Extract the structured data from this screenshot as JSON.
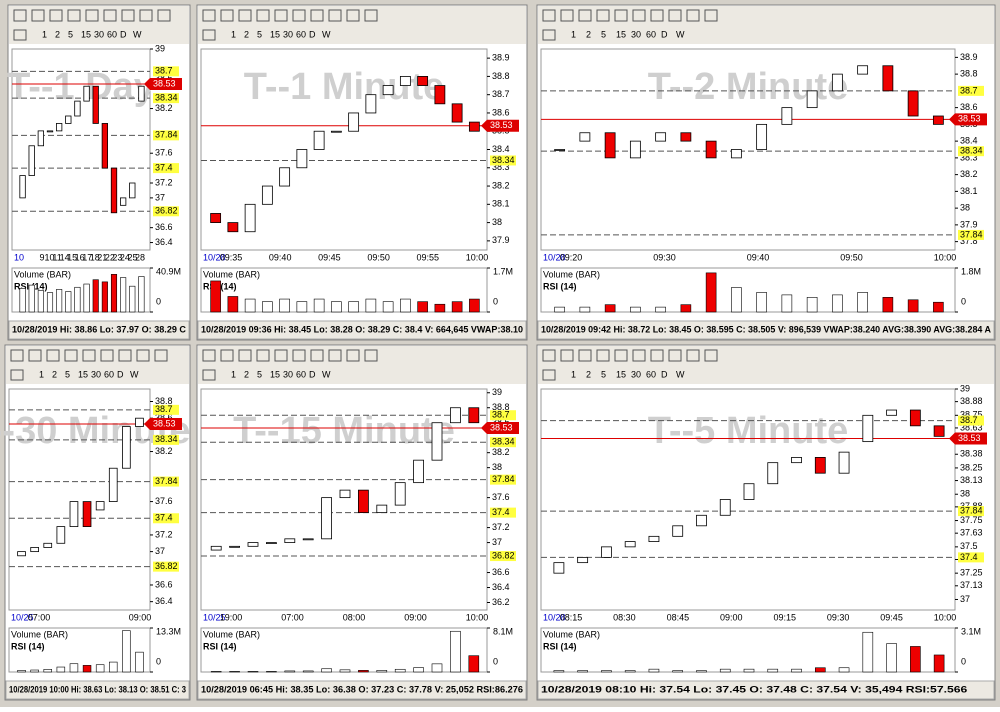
{
  "panels": [
    {
      "watermark": "T--1 Day",
      "intervals": [
        "1",
        "2",
        "5",
        "15",
        "30",
        "60",
        "D",
        "W"
      ],
      "ylim": [
        36.3,
        39.0
      ],
      "yticks": [
        39,
        38.6,
        38.2,
        37.6,
        37.2,
        37,
        36.6,
        36.4
      ],
      "levels": [
        38.7,
        38.34,
        37.84,
        37.4,
        36.82
      ],
      "last_price": 38.53,
      "x_labels": [
        "9",
        "10",
        "11",
        "14",
        "15",
        "16",
        "17",
        "18",
        "21",
        "22",
        "23",
        "24",
        "25",
        "28"
      ],
      "date_label": "10",
      "volume_title": "Volume (BAR)",
      "rsi_title": "RSI (14)",
      "volume_ticks": [
        {
          "value": 40.9,
          "label": "40.9M"
        },
        0
      ],
      "status": "10/28/2019   Hi: 38.86   Lo: 37.97   O: 38.29   C",
      "open": [
        37.0,
        37.3,
        37.7,
        37.9,
        37.9,
        38.0,
        38.1,
        38.3,
        38.5,
        38.0,
        37.4,
        36.9,
        37.0,
        38.3
      ],
      "close": [
        37.3,
        37.7,
        37.9,
        37.9,
        38.0,
        38.1,
        38.3,
        38.5,
        38.0,
        37.4,
        36.8,
        37.0,
        37.2,
        38.5
      ],
      "volume": [
        22,
        25,
        20,
        18,
        21,
        19,
        23,
        26,
        30,
        28,
        35,
        32,
        24,
        33
      ]
    },
    {
      "watermark": "T--1 Minute",
      "intervals": [
        "1",
        "2",
        "5",
        "15",
        "30",
        "60",
        "D",
        "W"
      ],
      "ylim": [
        37.85,
        38.95
      ],
      "yticks": [
        38.9,
        38.8,
        38.7,
        38.6,
        38.5,
        38.4,
        38.3,
        38.2,
        38.1,
        38,
        37.9
      ],
      "levels": [
        38.34
      ],
      "last_price": 38.53,
      "x_labels": [
        "09:35",
        "09:40",
        "09:45",
        "09:50",
        "09:55",
        "10:00"
      ],
      "date_label": "10/28",
      "volume_title": "Volume (BAR)",
      "rsi_title": "RSI (14)",
      "volume_ticks": [
        {
          "value": 1.7,
          "label": "1.7M"
        },
        0
      ],
      "status": "10/28/2019 09:36   Hi: 38.45   Lo: 38.28   O: 38.29   C: 38.4   V: 664,645   VWAP:38.10",
      "open": [
        38.05,
        38.0,
        37.95,
        38.1,
        38.2,
        38.3,
        38.4,
        38.5,
        38.5,
        38.6,
        38.7,
        38.75,
        38.8,
        38.75,
        38.65,
        38.55
      ],
      "close": [
        38.0,
        37.95,
        38.1,
        38.2,
        38.3,
        38.4,
        38.5,
        38.5,
        38.6,
        38.7,
        38.75,
        38.8,
        38.75,
        38.65,
        38.55,
        38.5
      ],
      "volume": [
        1.2,
        0.6,
        0.5,
        0.4,
        0.5,
        0.4,
        0.5,
        0.4,
        0.4,
        0.5,
        0.4,
        0.5,
        0.4,
        0.3,
        0.4,
        0.5
      ]
    },
    {
      "watermark": "T--2 Minute",
      "intervals": [
        "1",
        "2",
        "5",
        "15",
        "30",
        "60",
        "D",
        "W"
      ],
      "ylim": [
        37.75,
        38.95
      ],
      "yticks": [
        38.9,
        38.8,
        38.6,
        38.5,
        38.4,
        38.3,
        38.2,
        38.1,
        38,
        37.9,
        37.8
      ],
      "levels": [
        38.7,
        38.34,
        37.84
      ],
      "last_price": 38.53,
      "x_labels": [
        "09:20",
        "09:30",
        "09:40",
        "09:50",
        "10:00"
      ],
      "date_label": "10/28",
      "volume_title": "Volume (BAR)",
      "rsi_title": "RSI (14)",
      "volume_ticks": [
        {
          "value": 1.8,
          "label": "1.8M"
        },
        0
      ],
      "status": "10/28/2019 09:42   Hi: 38.72   Lo: 38.45   O: 38.595   C: 38.505   V: 896,539   VWAP:38.240   AVG:38.390   AVG:38.284   A",
      "open": [
        38.35,
        38.4,
        38.45,
        38.3,
        38.4,
        38.45,
        38.4,
        38.3,
        38.35,
        38.5,
        38.6,
        38.7,
        38.8,
        38.85,
        38.7,
        38.55
      ],
      "close": [
        38.35,
        38.45,
        38.3,
        38.4,
        38.45,
        38.4,
        38.3,
        38.35,
        38.5,
        38.6,
        38.7,
        38.8,
        38.85,
        38.7,
        38.55,
        38.5
      ],
      "volume": [
        0.2,
        0.2,
        0.3,
        0.2,
        0.2,
        0.3,
        1.6,
        1.0,
        0.8,
        0.7,
        0.6,
        0.7,
        0.8,
        0.6,
        0.5,
        0.4
      ]
    },
    {
      "watermark": "T--30 Minute",
      "intervals": [
        "1",
        "2",
        "5",
        "15",
        "30",
        "60",
        "D",
        "W"
      ],
      "ylim": [
        36.3,
        38.95
      ],
      "yticks": [
        38.8,
        38.6,
        38.2,
        37.6,
        37.2,
        37,
        36.6,
        36.4
      ],
      "levels": [
        38.7,
        38.34,
        37.84,
        37.4,
        36.82
      ],
      "last_price": 38.53,
      "x_labels": [
        "07:00",
        "09:00"
      ],
      "date_label": "10/25",
      "volume_title": "Volume (BAR)",
      "rsi_title": "RSI (14)",
      "volume_ticks": [
        {
          "value": 13.3,
          "label": "13.3M"
        },
        0
      ],
      "status": "10/28/2019 10:00   Hi: 38.63   Lo: 38.13   O: 38.51   C: 3",
      "open": [
        36.95,
        37.0,
        37.05,
        37.1,
        37.3,
        37.6,
        37.5,
        37.6,
        38.0,
        38.5
      ],
      "close": [
        37.0,
        37.05,
        37.1,
        37.3,
        37.6,
        37.3,
        37.6,
        38.0,
        38.5,
        38.6
      ],
      "volume": [
        0.5,
        0.6,
        0.8,
        1.5,
        2.5,
        2.0,
        2.2,
        3.0,
        12.5,
        6.0
      ]
    },
    {
      "watermark": "T--15 Minute",
      "intervals": [
        "1",
        "2",
        "5",
        "15",
        "30",
        "60",
        "D",
        "W"
      ],
      "ylim": [
        36.1,
        39.05
      ],
      "yticks": [
        39,
        38.8,
        38.6,
        38.2,
        38,
        37.6,
        37.2,
        37,
        36.6,
        36.4,
        36.2
      ],
      "levels": [
        38.7,
        38.34,
        37.84,
        37.4,
        36.82
      ],
      "last_price": 38.53,
      "x_labels": [
        "19:00",
        "07:00",
        "08:00",
        "09:00",
        "10:00"
      ],
      "date_label": "10/25",
      "volume_title": "Volume (BAR)",
      "rsi_title": "RSI (14)",
      "volume_ticks": [
        {
          "value": 8.1,
          "label": "8.1M"
        },
        0
      ],
      "status": "10/28/2019 06:45   Hi: 38.35   Lo: 36.38   O: 37.23   C: 37.78   V: 25,052   RSI:86.276",
      "open": [
        36.9,
        36.95,
        36.95,
        37.0,
        37.0,
        37.05,
        37.05,
        37.6,
        37.7,
        37.4,
        37.5,
        37.8,
        38.1,
        38.6,
        38.8
      ],
      "close": [
        36.95,
        36.95,
        37.0,
        37.0,
        37.05,
        37.05,
        37.6,
        37.7,
        37.4,
        37.5,
        37.8,
        38.1,
        38.6,
        38.8,
        38.6
      ],
      "volume": [
        0.1,
        0.1,
        0.1,
        0.1,
        0.2,
        0.2,
        0.6,
        0.4,
        0.3,
        0.3,
        0.5,
        0.8,
        1.5,
        7.5,
        3.0
      ]
    },
    {
      "watermark": "T--5 Minute",
      "intervals": [
        "1",
        "2",
        "5",
        "15",
        "30",
        "60",
        "D",
        "W"
      ],
      "ylim": [
        36.9,
        39.0
      ],
      "yticks": [
        39,
        38.88,
        38.75,
        38.63,
        38.5,
        38.38,
        38.25,
        38.13,
        38,
        37.88,
        37.75,
        37.63,
        37.5,
        37.38,
        37.25,
        37.13,
        37
      ],
      "levels": [
        38.7,
        37.84,
        37.4
      ],
      "last_price": 38.53,
      "x_labels": [
        "08:15",
        "08:30",
        "08:45",
        "09:00",
        "09:15",
        "09:30",
        "09:45",
        "10:00"
      ],
      "date_label": "10/28",
      "volume_title": "Volume (BAR)",
      "rsi_title": "RSI (14)",
      "volume_ticks": [
        {
          "value": 3.1,
          "label": "3.1M"
        },
        0
      ],
      "status": "10/28/2019 08:10   Hi: 37.54   Lo: 37.45   O: 37.48   C: 37.54   V: 35,494   RSI:57.566",
      "open": [
        37.25,
        37.35,
        37.4,
        37.5,
        37.55,
        37.6,
        37.7,
        37.8,
        37.95,
        38.1,
        38.3,
        38.35,
        38.2,
        38.5,
        38.75,
        38.8,
        38.65
      ],
      "close": [
        37.35,
        37.4,
        37.5,
        37.55,
        37.6,
        37.7,
        37.8,
        37.95,
        38.1,
        38.3,
        38.35,
        38.2,
        38.4,
        38.75,
        38.8,
        38.65,
        38.55
      ],
      "volume": [
        0.1,
        0.1,
        0.1,
        0.1,
        0.2,
        0.1,
        0.1,
        0.2,
        0.2,
        0.2,
        0.2,
        0.3,
        0.3,
        2.8,
        2.0,
        1.8,
        1.2
      ]
    }
  ]
}
